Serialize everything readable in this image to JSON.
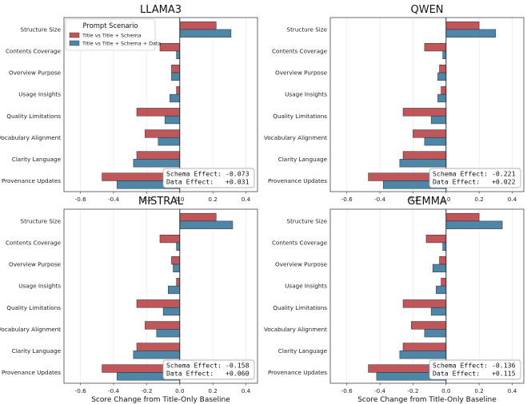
{
  "legend": {
    "title": "Prompt Scenario",
    "items": [
      {
        "label": "Title vs Title + Schema",
        "color": "#c0555a"
      },
      {
        "label": "Title vs Title + Schema + Data",
        "color": "#4e86a8"
      }
    ]
  },
  "chart_data": [
    {
      "type": "bar",
      "orientation": "horizontal",
      "title": "LLAMA3",
      "xlabel": "",
      "categories": [
        "Structure Size",
        "Contents Coverage",
        "Overview Purpose",
        "Usage Insights",
        "Quality Limitations",
        "Vocabulary Alignment",
        "Clarity Language",
        "Provenance Updates"
      ],
      "xlim": [
        -0.7,
        0.47
      ],
      "xticks": [
        "-0.6",
        "-0.4",
        "-0.2",
        "0.0",
        "0.2",
        "0.4"
      ],
      "series": [
        {
          "name": "Title vs Title + Schema",
          "values": [
            0.22,
            -0.12,
            -0.05,
            -0.02,
            -0.26,
            -0.21,
            -0.26,
            -0.47
          ]
        },
        {
          "name": "Title vs Title + Schema + Data",
          "values": [
            0.31,
            -0.02,
            -0.05,
            -0.06,
            -0.09,
            -0.13,
            -0.28,
            -0.38
          ]
        }
      ],
      "annotation": [
        "Schema Effect: -0.073",
        "Data Effect:   +0.031"
      ]
    },
    {
      "type": "bar",
      "orientation": "horizontal",
      "title": "QWEN",
      "xlabel": "",
      "categories": [
        "Structure Size",
        "Contents Coverage",
        "Overview Purpose",
        "Usage Insights",
        "Quality Limitations",
        "Vocabulary Alignment",
        "Clarity Language",
        "Provenance Updates"
      ],
      "xlim": [
        -0.7,
        0.47
      ],
      "xticks": [
        "-0.6",
        "-0.4",
        "-0.2",
        "0.0",
        "0.2",
        "0.4"
      ],
      "series": [
        {
          "name": "Title vs Title + Schema",
          "values": [
            0.2,
            -0.13,
            -0.04,
            -0.03,
            -0.26,
            -0.2,
            -0.26,
            -0.47
          ]
        },
        {
          "name": "Title vs Title + Schema + Data",
          "values": [
            0.3,
            -0.02,
            -0.05,
            -0.05,
            -0.09,
            -0.13,
            -0.28,
            -0.38
          ]
        }
      ],
      "annotation": [
        "Schema Effect: -0.221",
        "Data Effect:   +0.022"
      ]
    },
    {
      "type": "bar",
      "orientation": "horizontal",
      "title": "MISTRAL",
      "xlabel": "Score Change from Title-Only Baseline",
      "categories": [
        "Structure Size",
        "Contents Coverage",
        "Overview Purpose",
        "Usage Insights",
        "Quality Limitations",
        "Vocabulary Alignment",
        "Clarity Language",
        "Provenance Updates"
      ],
      "xlim": [
        -0.7,
        0.47
      ],
      "xticks": [
        "-0.6",
        "-0.4",
        "-0.2",
        "0.0",
        "0.2",
        "0.4"
      ],
      "series": [
        {
          "name": "Title vs Title + Schema",
          "values": [
            0.22,
            -0.12,
            -0.05,
            -0.02,
            -0.26,
            -0.21,
            -0.26,
            -0.47
          ]
        },
        {
          "name": "Title vs Title + Schema + Data",
          "values": [
            0.32,
            -0.02,
            -0.04,
            -0.07,
            -0.1,
            -0.14,
            -0.28,
            -0.38
          ]
        }
      ],
      "annotation": [
        "Schema Effect: -0.158",
        "Data Effect:   +0.060"
      ]
    },
    {
      "type": "bar",
      "orientation": "horizontal",
      "title": "GEMMA",
      "xlabel": "Score Change from Title-Only Baseline",
      "categories": [
        "Structure Size",
        "Contents Coverage",
        "Overview Purpose",
        "Usage Insights",
        "Quality Limitations",
        "Vocabulary Alignment",
        "Clarity Language",
        "Provenance Updates"
      ],
      "xlim": [
        -0.7,
        0.47
      ],
      "xticks": [
        "-0.6",
        "-0.4",
        "-0.2",
        "0.0",
        "0.2",
        "0.4"
      ],
      "series": [
        {
          "name": "Title vs Title + Schema",
          "values": [
            0.2,
            -0.12,
            -0.04,
            -0.03,
            -0.26,
            -0.21,
            -0.26,
            -0.47
          ]
        },
        {
          "name": "Title vs Title + Schema + Data",
          "values": [
            0.34,
            -0.02,
            -0.08,
            -0.06,
            -0.09,
            -0.13,
            -0.28,
            -0.42
          ]
        }
      ],
      "annotation": [
        "Schema Effect: -0.136",
        "Data Effect:   +0.115"
      ]
    }
  ]
}
